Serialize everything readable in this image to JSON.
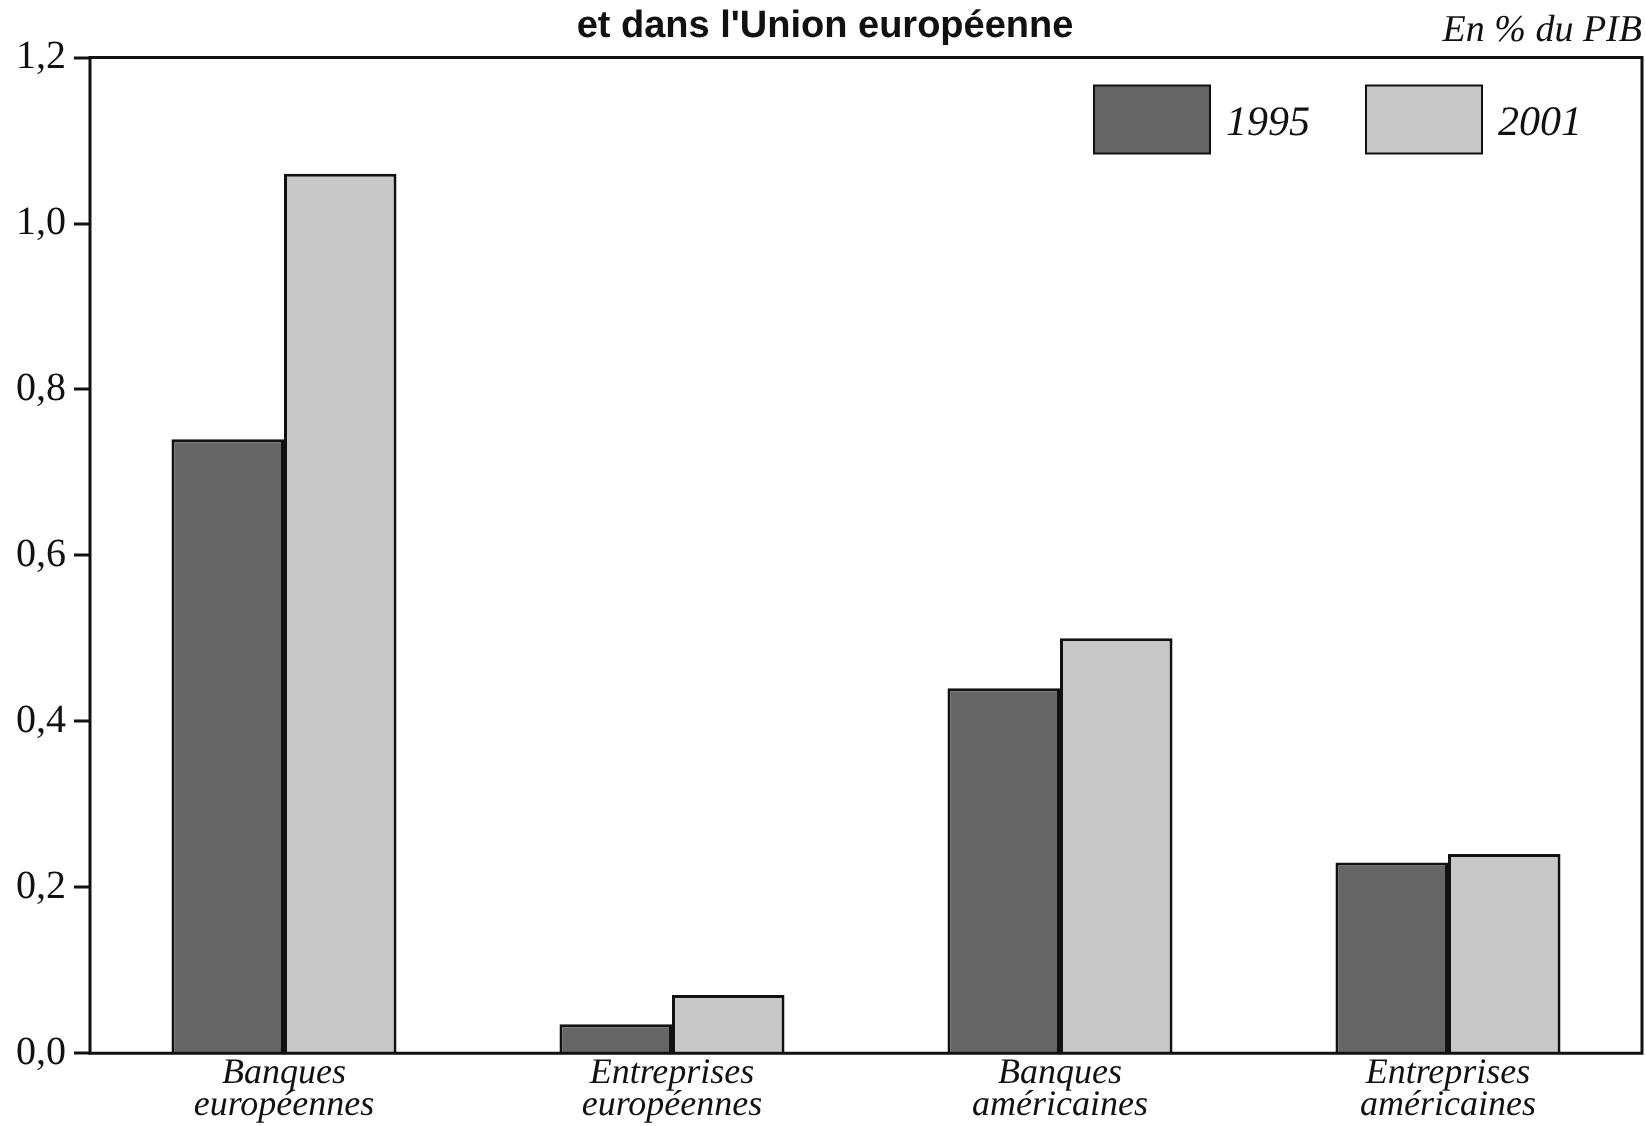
{
  "chart_data": {
    "type": "bar",
    "title": "et dans l'Union européenne",
    "annotations": [
      "En % du PIB"
    ],
    "categories": [
      "Banques européennes",
      "Entreprises européennes",
      "Banques américaines",
      "Entreprises américaines"
    ],
    "series": [
      {
        "name": "1995",
        "color": "#666666",
        "values": [
          0.74,
          0.035,
          0.44,
          0.23
        ]
      },
      {
        "name": "2001",
        "color": "#c8c8c8",
        "values": [
          1.06,
          0.07,
          0.5,
          0.24
        ]
      }
    ],
    "ylim": [
      0,
      1.2
    ],
    "yticks": [
      {
        "value": 0,
        "label": "0,0"
      },
      {
        "value": 0.2,
        "label": "0,2"
      },
      {
        "value": 0.4,
        "label": "0,4"
      },
      {
        "value": 0.6,
        "label": "0,6"
      },
      {
        "value": 0.8,
        "label": "0,8"
      },
      {
        "value": 1,
        "label": "1,0"
      },
      {
        "value": 1.2,
        "label": "1,2"
      }
    ],
    "grid": false,
    "legend": "top right"
  }
}
